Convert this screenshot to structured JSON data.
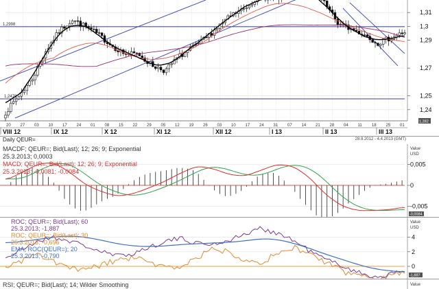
{
  "chart_data": [
    {
      "type": "candlestick",
      "title": "",
      "y_ticks": [
        "1,31",
        "1,3",
        "1,29",
        "1,27",
        "1,25",
        "1,24"
      ],
      "y_tick_values": [
        1.31,
        1.3,
        1.29,
        1.27,
        1.25,
        1.24
      ],
      "ylim": [
        1.232,
        1.318
      ],
      "ref_lines": [
        {
          "label": "1,2998",
          "value": 1.2998
        },
        {
          "label": "1,2478",
          "value": 1.2478
        }
      ],
      "x_tick_labels": [
        "20",
        "27",
        "03",
        "10",
        "17",
        "24",
        "01",
        "08",
        "15",
        "22",
        "29",
        "05",
        "12",
        "19",
        "26",
        "03",
        "10",
        "17",
        "24",
        "31",
        "07",
        "14",
        "21",
        "28",
        "04",
        "11",
        "18",
        "25",
        "01"
      ],
      "months": [
        "VIII 12",
        "IX 12",
        "X 12",
        "XI 12",
        "XII 12",
        "I 13",
        "II 13",
        "III 13"
      ],
      "end_value_label": "1,282"
    },
    {
      "type": "line",
      "header_left": "Daily QEUR=",
      "header_right": "28.8.2012 - 4.4.2013 (GMT)",
      "legend": [
        {
          "text": "MACDF; QEUR=; Bid(Last); 12; 26; 9; Exponential",
          "color": "#333333"
        },
        {
          "text": "25.3.2013; 0,0003",
          "color": "#333333"
        },
        {
          "text": "MACD; QEUR=; Bid(Last); 12; 26; 9; Exponential",
          "color": "#d9302c"
        },
        {
          "text": "25.3.2013; -0,0081; -0,0084",
          "color": "#d9302c"
        }
      ],
      "value_title": "Value",
      "value_unit": "USD",
      "y_ticks": [
        "0,005",
        "0",
        "-0,005"
      ],
      "y_tick_values": [
        0.005,
        0,
        -0.005
      ],
      "ylim": [
        -0.0072,
        0.0095
      ],
      "end_value_label": "-0,0084"
    },
    {
      "type": "line",
      "legend": [
        {
          "text": "ROC; QEUR=; Bid(Last); 60",
          "color": "#7b3a8c"
        },
        {
          "text": "25.3.2013; -1,887",
          "color": "#7b3a8c"
        },
        {
          "text": "ROC; QEUR=; Bid(Last); 30",
          "color": "#e08a2c"
        },
        {
          "text": "25.3.2013; -0,696",
          "color": "#e08a2c"
        },
        {
          "text": "EMA; ROC(QEUR=); 20",
          "color": "#3a6fc4"
        },
        {
          "text": "25.3.2013; -0,790",
          "color": "#3a6fc4"
        }
      ],
      "value_title": "Value",
      "value_unit": "USD",
      "y_ticks": [
        "4",
        "2",
        "0"
      ],
      "y_tick_values": [
        4,
        2,
        0
      ],
      "ylim": [
        -1.6,
        6.5
      ],
      "end_value_label": "-1,887"
    },
    {
      "type": "line",
      "legend": [
        {
          "text": "RSI; QEUR=; Bid(Last); 14; Wilder Smoothing",
          "color": "#333333"
        }
      ],
      "value_title": "Value"
    }
  ]
}
